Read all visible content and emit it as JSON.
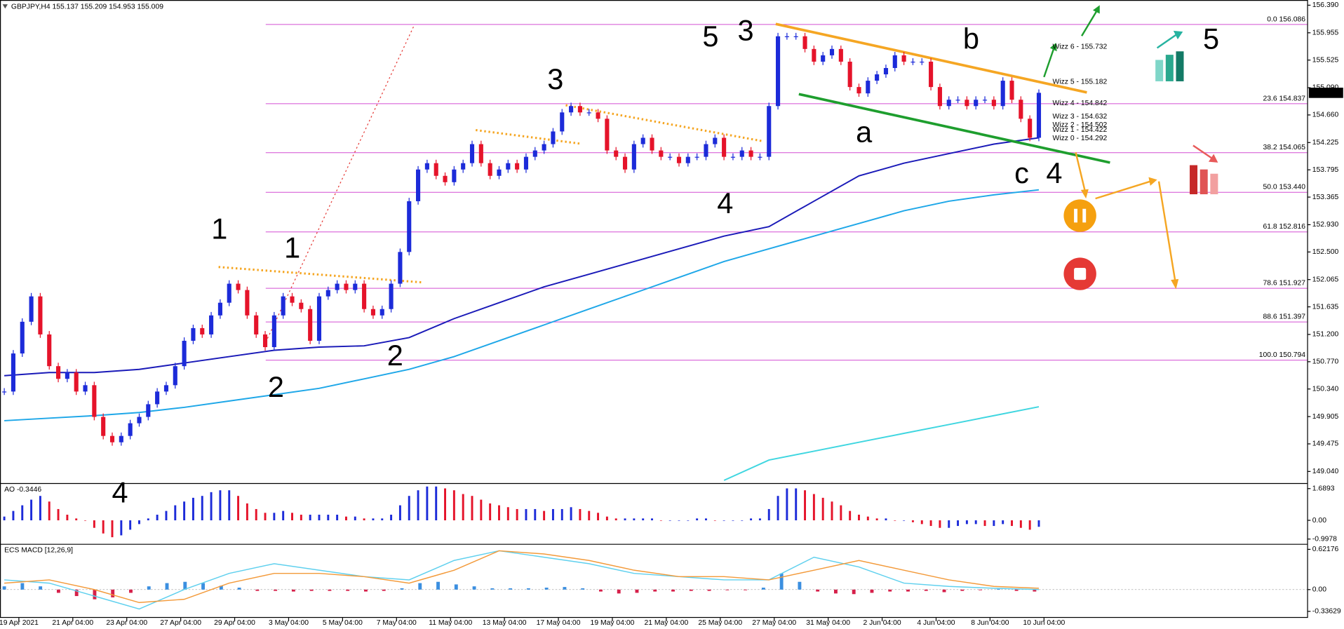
{
  "chart_data": [
    {
      "type": "candlestick",
      "title": "GBPJPY,H4  155.137 155.209 154.953 155.009",
      "ylim": [
        148.85,
        156.472
      ],
      "yticks": [
        {
          "value": 156.39,
          "label": "156.390"
        },
        155.955,
        155.525,
        {
          "value": 155.09,
          "label": "155.090"
        },
        {
          "value": 154.66,
          "label": "154.660"
        },
        154.225,
        153.795,
        153.365,
        {
          "value": 152.93,
          "label": "152.930"
        },
        {
          "value": 152.5,
          "label": "152.500"
        },
        152.065,
        151.635,
        {
          "value": 151.2,
          "label": "151.200"
        },
        {
          "value": 150.77,
          "label": "150.770"
        },
        {
          "value": 150.34,
          "label": "150.340"
        },
        149.905,
        149.475,
        {
          "value": 149.04,
          "label": "149.040"
        }
      ],
      "last_price": 155.009,
      "up_color": "#1c2bd9",
      "down_color": "#e5132a",
      "closes": [
        150.3,
        150.9,
        151.4,
        151.8,
        151.2,
        150.7,
        150.5,
        150.6,
        150.3,
        150.4,
        149.9,
        149.6,
        149.5,
        149.6,
        149.8,
        149.9,
        150.1,
        150.3,
        150.4,
        150.7,
        151.1,
        151.3,
        151.2,
        151.5,
        151.7,
        152.0,
        151.9,
        151.5,
        151.2,
        151.0,
        151.5,
        151.8,
        151.7,
        151.6,
        151.1,
        151.8,
        151.9,
        152.0,
        151.9,
        152.0,
        151.6,
        151.5,
        151.6,
        152.0,
        152.5,
        153.3,
        153.8,
        153.9,
        153.7,
        153.6,
        153.8,
        153.9,
        154.2,
        153.9,
        153.7,
        153.8,
        153.9,
        153.8,
        154.0,
        154.1,
        154.2,
        154.4,
        154.7,
        154.8,
        154.7,
        154.7,
        154.6,
        154.1,
        154.0,
        153.8,
        154.2,
        154.3,
        154.1,
        154.0,
        154.0,
        153.9,
        154.0,
        154.0,
        154.2,
        154.3,
        154.0,
        154.0,
        154.1,
        154.0,
        154.0,
        154.8,
        155.9,
        155.9,
        155.9,
        155.7,
        155.5,
        155.6,
        155.7,
        155.5,
        155.1,
        155.0,
        155.2,
        155.3,
        155.4,
        155.6,
        155.5,
        155.5,
        155.5,
        155.1,
        154.8,
        154.9,
        154.9,
        154.8,
        154.9,
        154.9,
        154.8,
        155.2,
        154.9,
        154.6,
        154.3,
        155.009
      ],
      "lines": [
        {
          "color": "#1a1ab8",
          "values": [
            150.55,
            150.6,
            150.6,
            150.65,
            150.75,
            150.85,
            150.95,
            151.0,
            151.02,
            151.15,
            151.45,
            151.7,
            151.95,
            152.15,
            152.35,
            152.55,
            152.75,
            152.9,
            153.3,
            153.7,
            153.9,
            154.05,
            154.2,
            154.3
          ]
        },
        {
          "color": "#1ea7e8",
          "values": [
            149.84,
            149.88,
            149.92,
            149.97,
            150.05,
            150.15,
            150.25,
            150.35,
            150.5,
            150.65,
            150.85,
            151.1,
            151.35,
            151.6,
            151.85,
            152.1,
            152.35,
            152.55,
            152.75,
            152.95,
            153.15,
            153.3,
            153.4,
            153.48
          ]
        },
        {
          "color": "#3fd6e0",
          "values": [
            null,
            null,
            null,
            null,
            null,
            null,
            null,
            null,
            null,
            null,
            null,
            null,
            null,
            null,
            null,
            null,
            148.9,
            149.22,
            149.36,
            149.5,
            149.64,
            149.78,
            149.92,
            150.06
          ]
        }
      ],
      "levels_color": "#d34fd3",
      "levels": [
        {
          "value": 156.086,
          "label": "0.0 156.086"
        },
        {
          "value": 154.837,
          "label": "23.6 154.837"
        },
        {
          "value": 154.065,
          "label": "38.2 154.065"
        },
        {
          "value": 153.44,
          "label": "50.0 153.440"
        },
        {
          "value": 152.816,
          "label": "61.8 152.816"
        },
        {
          "value": 151.927,
          "label": "78.6 151.927"
        },
        {
          "value": 151.397,
          "label": "88.6 151.397"
        },
        {
          "value": 150.794,
          "label": "100.0 150.794"
        }
      ],
      "wizz": [
        {
          "value": 155.732,
          "label": "Wizz 6 - 155.732",
          "color": "#52d6e6"
        },
        {
          "value": 155.182,
          "label": "Wizz 5 - 155.182",
          "color": "#2fc42f"
        },
        {
          "value": 154.842,
          "label": "Wizz 4 - 154.842",
          "color": "#a6e6a6"
        },
        {
          "value": 154.632,
          "label": "Wizz 3 - 154.632",
          "color": "#f5a623"
        },
        {
          "value": 154.502,
          "label": "Wizz 2 - 154.502",
          "color": "#f0506a"
        },
        {
          "value": 154.422,
          "label": "Wizz 1 - 154.422",
          "color": "#e01e2e"
        },
        {
          "value": 154.292,
          "label": "Wizz 0 - 154.292",
          "color": "#f3d23a"
        }
      ],
      "wave_labels": [
        {
          "text": "5",
          "color": "#f5a623"
        },
        {
          "text": "3",
          "color": "#9a9a9a"
        },
        {
          "text": "b",
          "color": "#f5a623"
        },
        {
          "text": "3",
          "color": "#f5a623"
        },
        {
          "text": "a",
          "color": "#f5a623"
        },
        {
          "text": "c",
          "color": "#f5a623"
        },
        {
          "text": "4",
          "color": "#9a9a9a"
        },
        {
          "text": "4",
          "color": "#f5a623"
        },
        {
          "text": "1",
          "color": "#9a9a9a"
        },
        {
          "text": "1",
          "color": "#f5a623"
        },
        {
          "text": "2",
          "color": "#9a9a9a"
        },
        {
          "text": "2",
          "color": "#f5a623"
        },
        {
          "text": "4",
          "color": "#f03cb4"
        },
        {
          "text": "5",
          "color": "#9a9a9a"
        }
      ],
      "x_labels": [
        "19 Apr 2021",
        "21 Apr 04:00",
        "23 Apr 04:00",
        "27 Apr 04:00",
        "29 Apr 04:00",
        "3 May 04:00",
        "5 May 04:00",
        "7 May 04:00",
        "11 May 04:00",
        "13 May 04:00",
        "17 May 04:00",
        "19 May 04:00",
        "21 May 04:00",
        "25 May 04:00",
        "27 May 04:00",
        "31 May 04:00",
        "2 Jun 04:00",
        "4 Jun 04:00",
        "8 Jun 04:00",
        "10 Jun 04:00"
      ]
    },
    {
      "type": "bar",
      "title": "AO -0.3446",
      "ylim": [
        -1.23,
        1.96
      ],
      "yticks": [
        1.6893,
        {
          "value": 0,
          "label": "0.00"
        },
        -0.9978
      ],
      "up_color": "#1c2bd9",
      "down_color": "#e5132a",
      "values": [
        0.2,
        0.5,
        0.8,
        1.1,
        1.3,
        1.0,
        0.6,
        0.3,
        0.1,
        0.0,
        -0.4,
        -0.7,
        -0.9,
        -0.8,
        -0.5,
        -0.2,
        0.1,
        0.3,
        0.5,
        0.8,
        1.0,
        1.2,
        1.3,
        1.5,
        1.6,
        1.6,
        1.3,
        0.9,
        0.6,
        0.4,
        0.4,
        0.5,
        0.4,
        0.3,
        0.3,
        0.3,
        0.3,
        0.3,
        0.2,
        0.2,
        0.1,
        0.1,
        0.1,
        0.3,
        0.8,
        1.3,
        1.6,
        1.8,
        1.8,
        1.7,
        1.6,
        1.4,
        1.3,
        1.1,
        0.9,
        0.8,
        0.7,
        0.6,
        0.6,
        0.6,
        0.5,
        0.6,
        0.6,
        0.7,
        0.6,
        0.5,
        0.4,
        0.2,
        0.1,
        0.1,
        0.1,
        0.1,
        0.1,
        0.0,
        0.0,
        0.0,
        0.0,
        0.1,
        0.1,
        0.0,
        0.0,
        0.0,
        0.0,
        0.1,
        0.1,
        0.6,
        1.3,
        1.7,
        1.7,
        1.6,
        1.4,
        1.2,
        1.0,
        0.8,
        0.5,
        0.3,
        0.2,
        0.1,
        0.1,
        0.0,
        0.0,
        -0.1,
        -0.2,
        -0.3,
        -0.4,
        -0.4,
        -0.3,
        -0.2,
        -0.2,
        -0.3,
        -0.3,
        -0.2,
        -0.3,
        -0.4,
        -0.5,
        -0.3446
      ]
    },
    {
      "type": "macd",
      "title": "ECS MACD [12,26,9]",
      "ylim": [
        -0.437,
        0.7
      ],
      "yticks": [
        0.62176,
        {
          "value": 0,
          "label": "0.00"
        },
        -0.33629
      ],
      "up_color": "#3b8fe0",
      "down_color": "#d6204a",
      "values": [
        0.05,
        0.1,
        0.05,
        -0.05,
        -0.1,
        -0.15,
        -0.12,
        -0.05,
        0.05,
        0.1,
        0.12,
        0.1,
        0.06,
        0.03,
        -0.02,
        -0.02,
        -0.03,
        -0.02,
        -0.02,
        -0.02,
        -0.03,
        -0.02,
        0.02,
        0.1,
        0.12,
        0.08,
        0.05,
        0.02,
        0.02,
        0.02,
        0.03,
        0.04,
        0.02,
        -0.03,
        -0.06,
        -0.05,
        -0.03,
        -0.03,
        -0.02,
        -0.02,
        -0.01,
        -0.01,
        0.03,
        0.25,
        0.12,
        -0.03,
        -0.06,
        -0.07,
        -0.05,
        -0.03,
        -0.03,
        -0.02,
        -0.04,
        -0.02,
        -0.01,
        0.01,
        -0.02,
        -0.03
      ],
      "lines": [
        {
          "color": "#5fd0ee",
          "values": [
            0.15,
            0.1,
            -0.1,
            -0.3,
            0.0,
            0.25,
            0.4,
            0.3,
            0.2,
            0.15,
            0.45,
            0.6,
            0.5,
            0.4,
            0.25,
            0.2,
            0.15,
            0.15,
            0.5,
            0.35,
            0.1,
            0.05,
            0.02,
            0.0
          ]
        },
        {
          "color": "#f39a3a",
          "values": [
            0.1,
            0.15,
            0.0,
            -0.2,
            -0.15,
            0.1,
            0.25,
            0.25,
            0.2,
            0.1,
            0.3,
            0.6,
            0.55,
            0.45,
            0.3,
            0.2,
            0.2,
            0.15,
            0.3,
            0.45,
            0.3,
            0.15,
            0.05,
            0.02
          ]
        }
      ]
    }
  ]
}
